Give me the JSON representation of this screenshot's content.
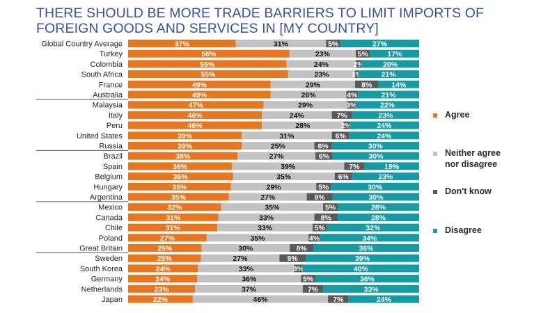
{
  "title_line1": "THERE SHOULD BE MORE TRADE BARRIERS TO LIMIT IMPORTS OF",
  "title_line2": "FOREIGN GOODS AND SERVICES IN [MY COUNTRY]",
  "colors": {
    "agree": "#E8761E",
    "neither": "#C2C2C2",
    "dontknow": "#595959",
    "disagree": "#149BA3",
    "title": "#3A4EA0"
  },
  "legend": {
    "agree": "Agree",
    "neither_line1": "Neither agree",
    "neither_line2": "nor disagree",
    "dontknow": "Don't know",
    "disagree": "Disagree"
  },
  "chart_data": {
    "type": "bar",
    "orientation": "horizontal-stacked-100",
    "title": "THERE SHOULD BE MORE TRADE BARRIERS TO LIMIT IMPORTS OF FOREIGN GOODS AND SERVICES IN [MY COUNTRY]",
    "series_names": [
      "Agree",
      "Neither agree nor disagree",
      "Don't know",
      "Disagree"
    ],
    "group_breaks_after": [
      5,
      10,
      15,
      20
    ],
    "rows": [
      {
        "label": "Global Country Average",
        "values": [
          37,
          31,
          5,
          27
        ]
      },
      {
        "label": "Turkey",
        "values": [
          56,
          23,
          5,
          17
        ]
      },
      {
        "label": "Colombia",
        "values": [
          55,
          24,
          2,
          20
        ]
      },
      {
        "label": "South Africa",
        "values": [
          55,
          23,
          1,
          21
        ]
      },
      {
        "label": "France",
        "values": [
          49,
          29,
          8,
          14
        ]
      },
      {
        "label": "Australia",
        "values": [
          49,
          26,
          4,
          21
        ]
      },
      {
        "label": "Malaysia",
        "values": [
          47,
          29,
          3,
          22
        ]
      },
      {
        "label": "Italy",
        "values": [
          46,
          24,
          7,
          23
        ]
      },
      {
        "label": "Peru",
        "values": [
          46,
          28,
          2,
          24
        ]
      },
      {
        "label": "United States",
        "values": [
          39,
          31,
          6,
          24
        ]
      },
      {
        "label": "Russia",
        "values": [
          39,
          25,
          6,
          30
        ]
      },
      {
        "label": "Brazil",
        "values": [
          38,
          27,
          6,
          30
        ]
      },
      {
        "label": "Spain",
        "values": [
          36,
          39,
          7,
          19
        ]
      },
      {
        "label": "Belgium",
        "values": [
          36,
          35,
          6,
          23
        ]
      },
      {
        "label": "Hungary",
        "values": [
          35,
          29,
          5,
          30
        ]
      },
      {
        "label": "Argentina",
        "values": [
          35,
          27,
          9,
          30
        ]
      },
      {
        "label": "Mexico",
        "values": [
          32,
          35,
          5,
          28
        ]
      },
      {
        "label": "Canada",
        "values": [
          31,
          33,
          8,
          28
        ]
      },
      {
        "label": "Chile",
        "values": [
          31,
          33,
          5,
          32
        ]
      },
      {
        "label": "Poland",
        "values": [
          27,
          35,
          4,
          34
        ]
      },
      {
        "label": "Great Britain",
        "values": [
          25,
          30,
          8,
          36
        ]
      },
      {
        "label": "Sweden",
        "values": [
          25,
          27,
          9,
          39
        ]
      },
      {
        "label": "South Korea",
        "values": [
          24,
          33,
          3,
          40
        ]
      },
      {
        "label": "Germany",
        "values": [
          24,
          36,
          5,
          36
        ]
      },
      {
        "label": "Netherlands",
        "values": [
          23,
          37,
          7,
          33
        ]
      },
      {
        "label": "Japan",
        "values": [
          22,
          46,
          7,
          24
        ]
      }
    ]
  }
}
